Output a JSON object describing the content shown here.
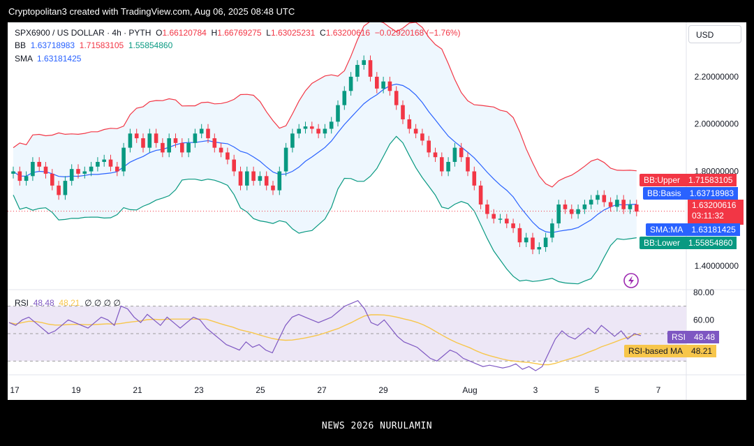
{
  "watermark": "Cryptopolitan3 created with TradingView.com, Aug 06, 2025 08:48 UTC",
  "footer_text": "NEWS 2026 NURULAMIN",
  "symbol": {
    "name": "SPX6900 / US DOLLAR · 4h · PYTH",
    "o_label": "O",
    "o": "1.66120784",
    "h_label": "H",
    "h": "1.66769275",
    "l_label": "L",
    "l": "1.63025231",
    "c_label": "C",
    "c": "1.63200616",
    "change": "−0.02920168 (−1.76%)"
  },
  "bb": {
    "label": "BB",
    "basis": "1.63718983",
    "upper": "1.71583105",
    "lower": "1.55854860"
  },
  "sma": {
    "label": "SMA",
    "value": "1.63181425"
  },
  "rsi": {
    "label": "RSI",
    "value": "48.48",
    "ma": "48.21",
    "extra": "∅ ∅ ∅ ∅"
  },
  "currency_button": "USD",
  "price_scale": [
    "2.20000000",
    "2.00000000",
    "1.80000000",
    "1.40000000"
  ],
  "rsi_scale": [
    "80.00",
    "60.00"
  ],
  "time_axis": [
    "17",
    "19",
    "21",
    "23",
    "25",
    "27",
    "29",
    "Aug",
    "3",
    "5",
    "7"
  ],
  "tags": {
    "bb_upper": {
      "k": "BB:Upper",
      "v": "1.71583105"
    },
    "bb_basis": {
      "k": "BB:Basis",
      "v": "1.63718983"
    },
    "price": {
      "v": "1.63200616",
      "countdown": "03:11:32"
    },
    "sma_ma": {
      "k": "SMA:MA",
      "v": "1.63181425"
    },
    "bb_lower": {
      "k": "BB:Lower",
      "v": "1.55854860"
    },
    "rsi": {
      "k": "RSI",
      "v": "48.48"
    },
    "rsi_ma": {
      "k": "RSI-based MA",
      "v": "48.21"
    }
  },
  "colors": {
    "up": "#089981",
    "down": "#f23645",
    "bb_upper": "#f23645",
    "bb_lower": "#089981",
    "bb_basis": "#2962ff",
    "bb_fill": "#e3f2fd",
    "rsi_line": "#7e57c2",
    "rsi_ma": "#f7c64b",
    "rsi_band": "#ede7f6"
  },
  "chart_data": {
    "type": "candlestick",
    "title": "SPX6900 / US DOLLAR · 4h · PYTH",
    "x_ticks": [
      "17",
      "19",
      "21",
      "23",
      "25",
      "27",
      "29",
      "Aug",
      "3",
      "5",
      "7"
    ],
    "price_ylim": [
      1.3,
      2.43
    ],
    "rsi_ylim": [
      20,
      82
    ],
    "close_path": [
      1.8,
      1.76,
      1.78,
      1.84,
      1.82,
      1.79,
      1.74,
      1.7,
      1.76,
      1.81,
      1.79,
      1.8,
      1.82,
      1.84,
      1.85,
      1.82,
      1.8,
      1.9,
      1.96,
      1.94,
      1.9,
      1.96,
      1.92,
      1.88,
      1.94,
      1.92,
      1.88,
      1.92,
      1.96,
      1.98,
      1.94,
      1.9,
      1.88,
      1.85,
      1.8,
      1.74,
      1.8,
      1.76,
      1.78,
      1.74,
      1.72,
      1.8,
      1.9,
      1.96,
      1.98,
      1.99,
      1.98,
      1.96,
      1.98,
      2.01,
      2.08,
      2.14,
      2.2,
      2.25,
      2.27,
      2.2,
      2.15,
      2.18,
      2.14,
      2.08,
      2.02,
      1.98,
      1.96,
      1.93,
      1.88,
      1.86,
      1.8,
      1.84,
      1.9,
      1.86,
      1.8,
      1.74,
      1.66,
      1.62,
      1.6,
      1.6,
      1.58,
      1.56,
      1.5,
      1.52,
      1.47,
      1.48,
      1.52,
      1.58,
      1.66,
      1.64,
      1.62,
      1.64,
      1.66,
      1.68,
      1.7,
      1.67,
      1.65,
      1.68,
      1.64,
      1.66,
      1.63
    ],
    "rsi_path": [
      58,
      56,
      60,
      62,
      58,
      54,
      50,
      52,
      56,
      60,
      58,
      56,
      54,
      58,
      62,
      60,
      56,
      70,
      68,
      62,
      58,
      64,
      60,
      56,
      62,
      58,
      54,
      58,
      62,
      60,
      54,
      50,
      46,
      42,
      40,
      38,
      44,
      40,
      42,
      38,
      36,
      46,
      56,
      62,
      64,
      62,
      60,
      58,
      60,
      62,
      66,
      70,
      72,
      74,
      68,
      58,
      56,
      60,
      54,
      48,
      44,
      42,
      40,
      36,
      32,
      30,
      34,
      38,
      36,
      32,
      30,
      28,
      26,
      27,
      26,
      25,
      26,
      28,
      24,
      26,
      23,
      26,
      36,
      46,
      52,
      48,
      46,
      50,
      54,
      50,
      56,
      52,
      48,
      52,
      46,
      50,
      48.5
    ]
  }
}
